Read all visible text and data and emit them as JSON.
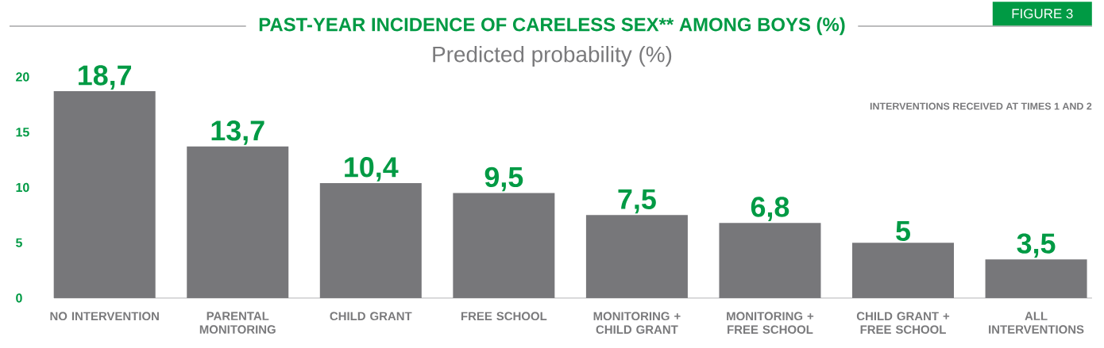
{
  "chart_data": {
    "type": "bar",
    "title": "PAST-YEAR INCIDENCE OF CARELESS SEX** AMONG BOYS (%)",
    "subtitle": "Predicted probability (%)",
    "annotations": [
      "FIGURE 3",
      "INTERVENTIONS RECEIVED AT TIMES 1 AND 2"
    ],
    "categories": [
      "NO INTERVENTION",
      "PARENTAL MONITORING",
      "CHILD GRANT",
      "FREE SCHOOL",
      "MONITORING + CHILD GRANT",
      "MONITORING + FREE SCHOOL",
      "CHILD GRANT + FREE SCHOOL",
      "ALL INTERVENTIONS"
    ],
    "values": [
      18.7,
      13.7,
      10.4,
      9.5,
      7.5,
      6.8,
      5,
      3.5
    ],
    "value_labels": [
      "18,7",
      "13,7",
      "10,4",
      "9,5",
      "7,5",
      "6,8",
      "5",
      "3,5"
    ],
    "color": "#77777a",
    "ylim": [
      0,
      20
    ],
    "yticks": [
      0,
      5,
      10,
      15,
      20
    ],
    "grid": false
  }
}
